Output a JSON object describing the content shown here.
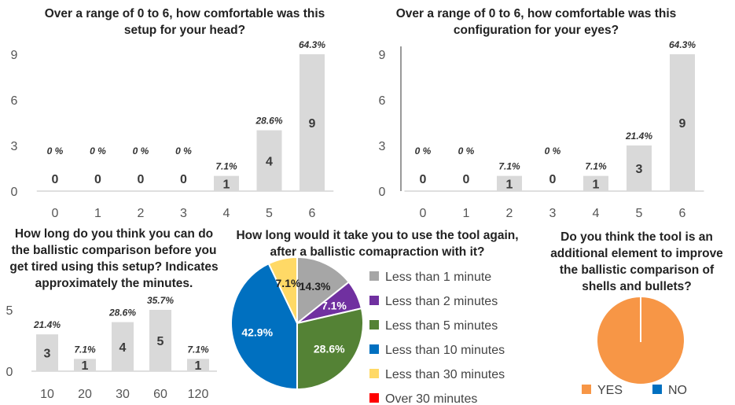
{
  "colors": {
    "bar": "#d9d9d9",
    "axis": "#bfbfbf",
    "pie": [
      "#a6a6a6",
      "#7030a0",
      "#548235",
      "#0070c0",
      "#ffd966",
      "#ff0000"
    ],
    "yes": "#f79646",
    "no": "#0070c0"
  },
  "chart_data": [
    {
      "type": "bar",
      "title": [
        "Over a range of 0 to 6, how comfortable was this",
        "setup for your head?"
      ],
      "categories": [
        "0",
        "1",
        "2",
        "3",
        "4",
        "5",
        "6"
      ],
      "values": [
        0,
        0,
        0,
        0,
        1,
        4,
        9
      ],
      "data_labels": [
        "0 %",
        "0 %",
        "0 %",
        "0 %",
        "7.1%",
        "28.6%",
        "64.3%"
      ],
      "yticks": [
        "0",
        "3",
        "6",
        "9"
      ],
      "ylim": [
        0,
        9
      ],
      "grid": false
    },
    {
      "type": "bar",
      "title": [
        "Over a range of 0 to 6, how comfortable was this",
        "configuration for your eyes?"
      ],
      "categories": [
        "0",
        "1",
        "2",
        "3",
        "4",
        "5",
        "6"
      ],
      "values": [
        0,
        0,
        1,
        0,
        1,
        3,
        9
      ],
      "data_labels": [
        "0 %",
        "0 %",
        "7.1%",
        "0 %",
        "7.1%",
        "21.4%",
        "64.3%"
      ],
      "yticks": [
        "0",
        "3",
        "6",
        "9"
      ],
      "ylim": [
        0,
        9
      ],
      "grid": false
    },
    {
      "type": "bar",
      "title": [
        "How long do you think you can do",
        "the ballistic comparison before you",
        "get tired using this setup? Indicates",
        "approximately the minutes."
      ],
      "categories": [
        "10",
        "20",
        "30",
        "60",
        "120"
      ],
      "values": [
        3,
        1,
        4,
        5,
        1
      ],
      "data_labels": [
        "21.4%",
        "7.1%",
        "28.6%",
        "35.7%",
        "7.1%"
      ],
      "yticks": [
        "0",
        "5"
      ],
      "ylim": [
        0,
        5
      ],
      "grid": false
    },
    {
      "type": "pie",
      "title": [
        "How long would it take you to use the tool again,",
        "after a ballistic comapraction with it?"
      ],
      "labels": [
        "Less than 1 minute",
        "Less than 2 minutes",
        "Less than 5 minutes",
        "Less than 10 minutes",
        "Less than 30 minutes",
        "Over 30 minutes"
      ],
      "values": [
        14.3,
        7.1,
        28.6,
        42.9,
        7.1,
        0
      ],
      "slice_labels": [
        "14.3%",
        "7.1%",
        "28.6%",
        "42.9%",
        "7.1%",
        ""
      ],
      "legend": "right"
    },
    {
      "type": "pie",
      "title": [
        "Do you think the tool is an",
        "additional element to improve",
        "the ballistic comparison of",
        "shells and bullets?"
      ],
      "labels": [
        "YES",
        "NO"
      ],
      "values": [
        100,
        0
      ],
      "legend": "bottom"
    }
  ]
}
